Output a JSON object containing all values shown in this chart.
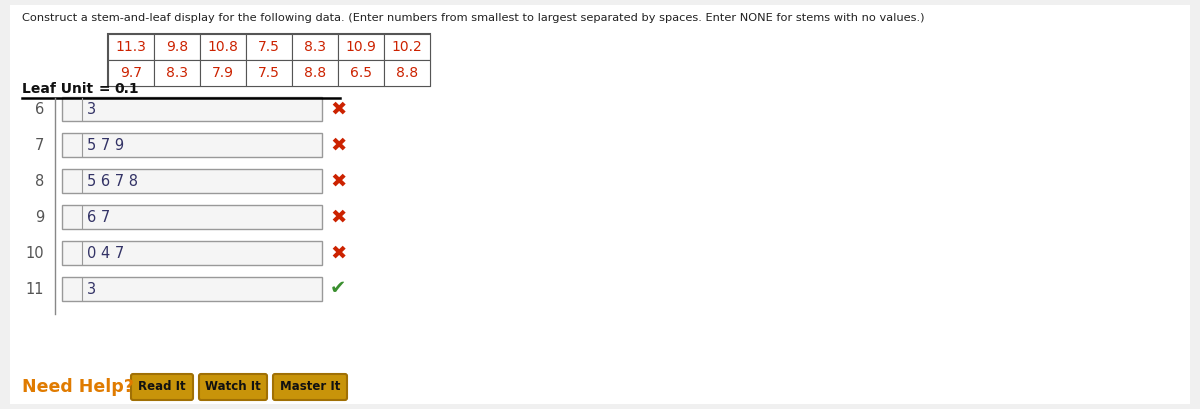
{
  "title": "Construct a stem-and-leaf display for the following data. (Enter numbers from smallest to largest separated by spaces. Enter NONE for stems with no values.)",
  "table_row1": [
    "11.3",
    "9.8",
    "10.8",
    "7.5",
    "8.3",
    "10.9",
    "10.2"
  ],
  "table_row2": [
    "9.7",
    "8.3",
    "7.9",
    "7.5",
    "8.8",
    "6.5",
    "8.8"
  ],
  "leaf_unit_text": "Leaf Unit = 0.1",
  "stems": [
    "6",
    "7",
    "8",
    "9",
    "10",
    "11"
  ],
  "leaves": [
    "3",
    "5 7 9",
    "5 6 7 8",
    "6 7",
    "0 4 7",
    "3"
  ],
  "markers": [
    "X",
    "X",
    "X",
    "X",
    "X",
    "check"
  ],
  "need_help_text": "Need Help?",
  "buttons": [
    "Read It",
    "Watch It",
    "Master It"
  ],
  "bg_color": "#ffffff",
  "text_color_red": "#cc2200",
  "text_color_black": "#111111",
  "text_color_dark": "#222222",
  "text_color_gray": "#555555",
  "marker_x_color": "#cc2200",
  "marker_check_color": "#3a8f2f",
  "button_color": "#c8940a",
  "button_border_color": "#a07005",
  "button_text_color": "#111111",
  "need_help_color": "#e07b00",
  "table_border_color": "#555555",
  "input_box_border": "#999999",
  "input_box_bg": "#f5f5f5",
  "input_divider_color": "#999999",
  "leaf_text_color": "#333366",
  "stem_label_color": "#555555",
  "page_bg": "#f0f0f0"
}
